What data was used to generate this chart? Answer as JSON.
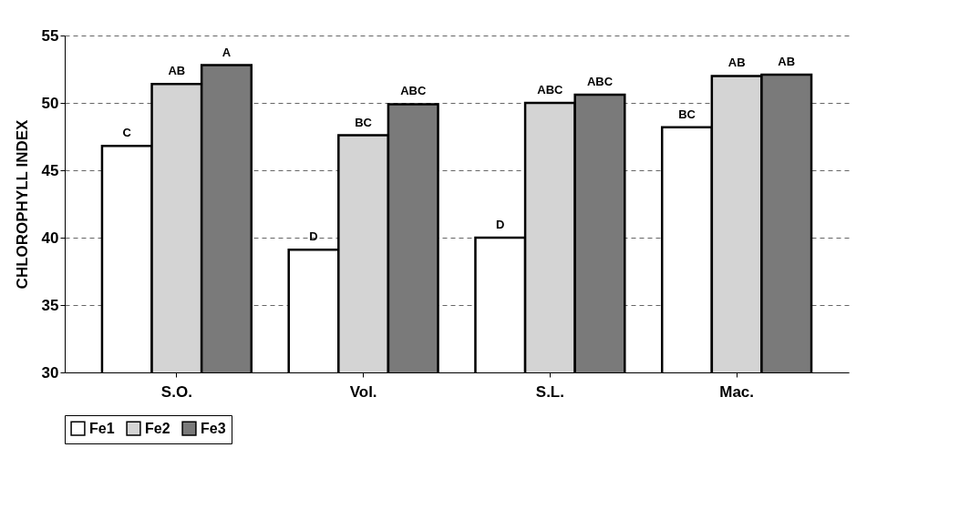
{
  "chart_data": {
    "type": "bar",
    "ylabel": "CHLOROPHYLL INDEX",
    "categories": [
      "S.O.",
      "Vol.",
      "S.L.",
      "Mac."
    ],
    "series": [
      {
        "name": "Fe1",
        "color": "#ffffff",
        "values": [
          46.8,
          39.1,
          40.0,
          48.2
        ],
        "value_labels": [
          "C",
          "D",
          "D",
          "BC"
        ]
      },
      {
        "name": "Fe2",
        "color": "#d4d4d4",
        "values": [
          51.4,
          47.6,
          50.0,
          52.0
        ],
        "value_labels": [
          "AB",
          "BC",
          "ABC",
          "AB"
        ]
      },
      {
        "name": "Fe3",
        "color": "#7a7a7a",
        "values": [
          52.8,
          49.9,
          50.6,
          52.1
        ],
        "value_labels": [
          "A",
          "ABC",
          "ABC",
          "AB"
        ]
      }
    ],
    "ylim": [
      30,
      55
    ],
    "yticks": [
      30,
      35,
      40,
      45,
      50,
      55
    ],
    "grid": "y",
    "legend": "bottom"
  }
}
